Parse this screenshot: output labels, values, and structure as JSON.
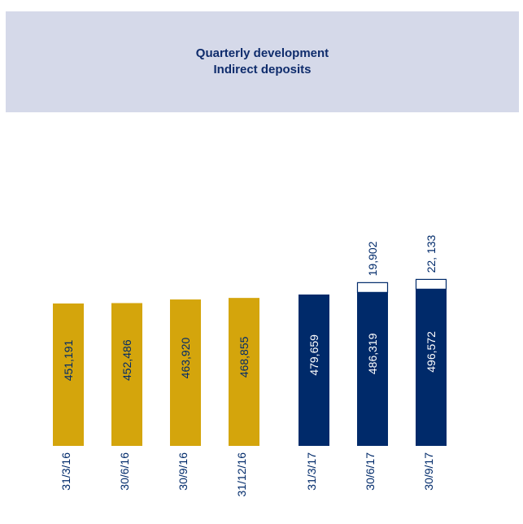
{
  "header": {
    "title_line1": "Quarterly development",
    "title_line2": "Indirect deposits"
  },
  "colors": {
    "header_bg": "#d5d9e9",
    "title_text": "#0f2c6c",
    "gold_bar": "#d4a50c",
    "navy_bar": "#002a6a",
    "label_text": "#002a6a"
  },
  "chart_data": {
    "type": "bar",
    "stacked": true,
    "title": "Quarterly development\nIndirect deposits",
    "categories": [
      "31/3/16",
      "30/6/16",
      "30/9/16",
      "31/12/16",
      "31/3/17",
      "30/6/17",
      "30/9/17"
    ],
    "values": [
      451191,
      452486,
      463920,
      468855,
      479659,
      486319,
      496572
    ],
    "value_labels": [
      "451,191",
      "452,486",
      "463,920",
      "468,855",
      "479,659",
      "486,319",
      "496,572"
    ],
    "bar_colors": [
      "#d4a50c",
      "#d4a50c",
      "#d4a50c",
      "#d4a50c",
      "#002a6a",
      "#002a6a",
      "#002a6a"
    ],
    "top_segments": [
      null,
      null,
      null,
      null,
      null,
      19902,
      22133
    ],
    "top_segment_labels": [
      "",
      "",
      "",
      "",
      "",
      "19,902",
      "22, 133"
    ],
    "grid": false,
    "legend": "none"
  }
}
